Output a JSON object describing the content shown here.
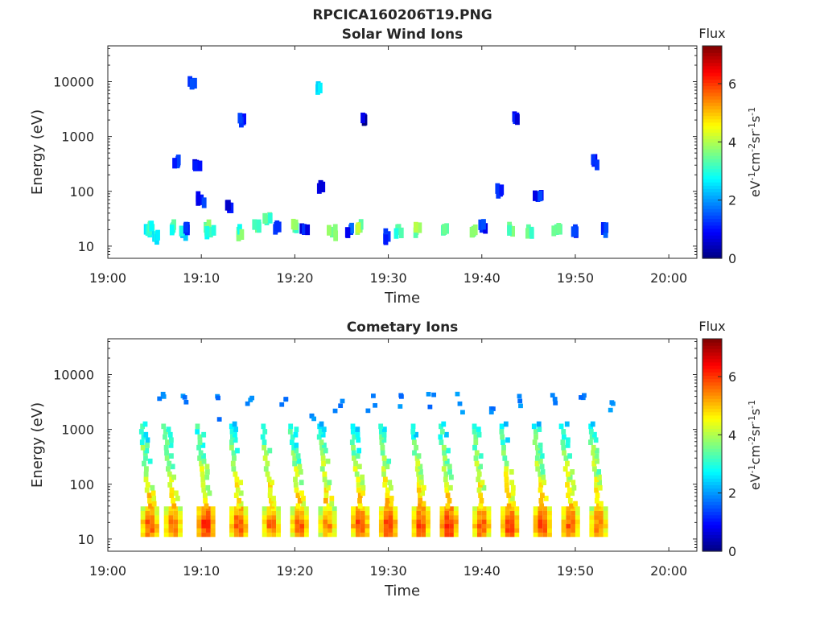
{
  "figure_title": "RPCICA160206T19.PNG",
  "chart_data": [
    {
      "type": "heatmap",
      "title": "Solar Wind Ions",
      "xlabel": "Time",
      "ylabel": "Energy (eV)",
      "y_scale": "log",
      "ylim": [
        6,
        45000
      ],
      "xlim": [
        "19:00",
        "20:03"
      ],
      "x_ticks": [
        "19:00",
        "19:10",
        "19:20",
        "19:30",
        "19:40",
        "19:50",
        "20:00"
      ],
      "y_ticks": [
        "10",
        "100",
        "1000",
        "10000"
      ],
      "colorbar": {
        "title": "Flux",
        "unit": "eV-1cm-2sr-1s-1",
        "range": [
          0,
          7.3
        ],
        "ticks": [
          "0",
          "2",
          "4",
          "6"
        ],
        "colormap": "jet"
      },
      "cells": [
        {
          "t": "19:04.5",
          "e": 18,
          "v": 2.8
        },
        {
          "t": "19:04.5",
          "e": 22,
          "v": 3.2
        },
        {
          "t": "19:05",
          "e": 15,
          "v": 2.5
        },
        {
          "t": "19:07",
          "e": 22,
          "v": 3.0
        },
        {
          "t": "19:07.5",
          "e": 350,
          "v": 1.0
        },
        {
          "t": "19:08",
          "e": 18,
          "v": 2.5
        },
        {
          "t": "19:08.5",
          "e": 22,
          "v": 1.2
        },
        {
          "t": "19:09",
          "e": 9000,
          "v": 1.3
        },
        {
          "t": "19:09.5",
          "e": 300,
          "v": 0.8
        },
        {
          "t": "19:10",
          "e": 70,
          "v": 1.1
        },
        {
          "t": "19:10.5",
          "e": 22,
          "v": 3.4
        },
        {
          "t": "19:11",
          "e": 18,
          "v": 3.2
        },
        {
          "t": "19:13",
          "e": 50,
          "v": 0.9
        },
        {
          "t": "19:14",
          "e": 18,
          "v": 3.3
        },
        {
          "t": "19:14.5",
          "e": 2000,
          "v": 1.2
        },
        {
          "t": "19:16",
          "e": 22,
          "v": 3.6
        },
        {
          "t": "19:17",
          "e": 30,
          "v": 3.1
        },
        {
          "t": "19:18",
          "e": 22,
          "v": 1.4
        },
        {
          "t": "19:20",
          "e": 22,
          "v": 3.4
        },
        {
          "t": "19:21",
          "e": 20,
          "v": 1.0
        },
        {
          "t": "19:22.5",
          "e": 8000,
          "v": 2.4
        },
        {
          "t": "19:23",
          "e": 120,
          "v": 0.7
        },
        {
          "t": "19:24",
          "e": 18,
          "v": 3.5
        },
        {
          "t": "19:26",
          "e": 20,
          "v": 1.3
        },
        {
          "t": "19:27",
          "e": 22,
          "v": 3.7
        },
        {
          "t": "19:27.5",
          "e": 2000,
          "v": 0.3
        },
        {
          "t": "19:30",
          "e": 15,
          "v": 1.3
        },
        {
          "t": "19:31",
          "e": 20,
          "v": 3.4
        },
        {
          "t": "19:33",
          "e": 20,
          "v": 3.6
        },
        {
          "t": "19:36",
          "e": 20,
          "v": 3.3
        },
        {
          "t": "19:39",
          "e": 18,
          "v": 3.3
        },
        {
          "t": "19:40",
          "e": 22,
          "v": 1.2
        },
        {
          "t": "19:42",
          "e": 100,
          "v": 1.0
        },
        {
          "t": "19:43",
          "e": 20,
          "v": 3.5
        },
        {
          "t": "19:43.5",
          "e": 2300,
          "v": 0.8
        },
        {
          "t": "19:45",
          "e": 20,
          "v": 3.4
        },
        {
          "t": "19:46",
          "e": 80,
          "v": 1.2
        },
        {
          "t": "19:48",
          "e": 20,
          "v": 3.3
        },
        {
          "t": "19:50",
          "e": 20,
          "v": 1.3
        },
        {
          "t": "19:52",
          "e": 350,
          "v": 1.1
        },
        {
          "t": "19:53",
          "e": 20,
          "v": 1.2
        }
      ]
    },
    {
      "type": "heatmap",
      "title": "Cometary Ions",
      "xlabel": "Time",
      "ylabel": "Energy (eV)",
      "y_scale": "log",
      "ylim": [
        6,
        45000
      ],
      "xlim": [
        "19:00",
        "20:03"
      ],
      "x_ticks": [
        "19:00",
        "19:10",
        "19:20",
        "19:30",
        "19:40",
        "19:50",
        "20:00"
      ],
      "y_ticks": [
        "10",
        "100",
        "1000",
        "10000"
      ],
      "colorbar": {
        "title": "Flux",
        "unit": "eV-1cm-2sr-1s-1",
        "range": [
          0,
          7.3
        ],
        "ticks": [
          "0",
          "2",
          "4",
          "6"
        ],
        "colormap": "jet"
      },
      "bursts": [
        {
          "t": "19:04.5",
          "peak_e": 18,
          "v": 6.2
        },
        {
          "t": "19:07",
          "peak_e": 18,
          "v": 6.0
        },
        {
          "t": "19:10.5",
          "peak_e": 18,
          "v": 6.5
        },
        {
          "t": "19:14",
          "peak_e": 18,
          "v": 6.2
        },
        {
          "t": "19:17.5",
          "peak_e": 18,
          "v": 6.0
        },
        {
          "t": "19:20.5",
          "peak_e": 18,
          "v": 6.1
        },
        {
          "t": "19:23.5",
          "peak_e": 18,
          "v": 5.8
        },
        {
          "t": "19:27",
          "peak_e": 18,
          "v": 6.3
        },
        {
          "t": "19:30",
          "peak_e": 18,
          "v": 6.4
        },
        {
          "t": "19:33.5",
          "peak_e": 18,
          "v": 6.3
        },
        {
          "t": "19:36.5",
          "peak_e": 18,
          "v": 6.5
        },
        {
          "t": "19:40",
          "peak_e": 18,
          "v": 6.2
        },
        {
          "t": "19:43",
          "peak_e": 18,
          "v": 6.4
        },
        {
          "t": "19:46.5",
          "peak_e": 18,
          "v": 6.3
        },
        {
          "t": "19:49.5",
          "peak_e": 18,
          "v": 6.2
        },
        {
          "t": "19:52.5",
          "peak_e": 18,
          "v": 6.0
        }
      ]
    }
  ]
}
